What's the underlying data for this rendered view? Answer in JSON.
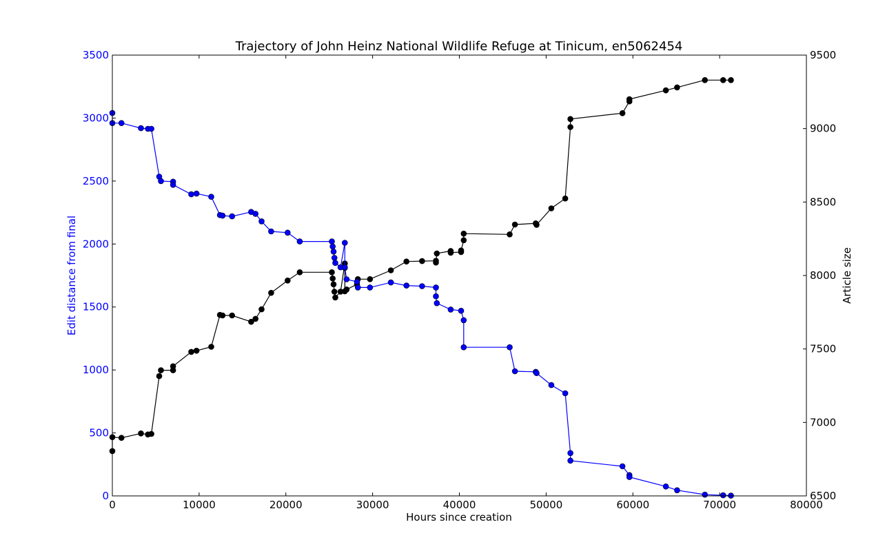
{
  "chart_data": {
    "type": "line",
    "title": "Trajectory of John Heinz National Wildlife Refuge at Tinicum, en5062454",
    "xlabel": "Hours since creation",
    "ylabel_left": "Edit distance from final",
    "ylabel_right": "Article size",
    "xlim": [
      0,
      80000
    ],
    "ylim_left": [
      0,
      3500
    ],
    "ylim_right": [
      6500,
      9500
    ],
    "xticks": [
      "0",
      "10000",
      "20000",
      "30000",
      "40000",
      "50000",
      "60000",
      "70000",
      "80000"
    ],
    "yticks_left": [
      "0",
      "500",
      "1000",
      "1500",
      "2000",
      "2500",
      "3000",
      "3500"
    ],
    "yticks_right": [
      "6500",
      "7000",
      "7500",
      "8000",
      "8500",
      "9000",
      "9500"
    ],
    "grid": false,
    "colors": {
      "left_axis": "#0000ff",
      "edit_series": "#0000ff",
      "size_series": "#000000"
    },
    "series": [
      {
        "axis": "left",
        "color": "#0000ff",
        "points": [
          [
            0,
            3040
          ],
          [
            0,
            2960
          ],
          [
            1050,
            2960
          ],
          [
            3300,
            2920
          ],
          [
            4100,
            2915
          ],
          [
            4500,
            2915
          ],
          [
            5400,
            2535
          ],
          [
            5600,
            2500
          ],
          [
            7000,
            2495
          ],
          [
            7000,
            2470
          ],
          [
            9100,
            2395
          ],
          [
            9700,
            2400
          ],
          [
            11400,
            2375
          ],
          [
            12400,
            2230
          ],
          [
            12700,
            2225
          ],
          [
            13800,
            2220
          ],
          [
            16000,
            2255
          ],
          [
            16500,
            2240
          ],
          [
            17200,
            2180
          ],
          [
            18300,
            2100
          ],
          [
            20200,
            2090
          ],
          [
            21600,
            2020
          ],
          [
            25300,
            2020
          ],
          [
            25400,
            1980
          ],
          [
            25500,
            1940
          ],
          [
            25600,
            1890
          ],
          [
            25700,
            1850
          ],
          [
            26300,
            1815
          ],
          [
            26800,
            2010
          ],
          [
            26800,
            1815
          ],
          [
            27000,
            1720
          ],
          [
            28200,
            1700
          ],
          [
            28300,
            1655
          ],
          [
            29700,
            1655
          ],
          [
            32100,
            1695
          ],
          [
            33900,
            1670
          ],
          [
            35700,
            1665
          ],
          [
            37300,
            1655
          ],
          [
            37300,
            1585
          ],
          [
            37400,
            1530
          ],
          [
            39000,
            1480
          ],
          [
            40200,
            1470
          ],
          [
            40500,
            1395
          ],
          [
            40500,
            1180
          ],
          [
            45800,
            1180
          ],
          [
            46400,
            990
          ],
          [
            48800,
            985
          ],
          [
            48900,
            975
          ],
          [
            50600,
            880
          ],
          [
            52200,
            815
          ],
          [
            52800,
            340
          ],
          [
            52800,
            280
          ],
          [
            58800,
            235
          ],
          [
            59600,
            165
          ],
          [
            59600,
            150
          ],
          [
            63800,
            75
          ],
          [
            65100,
            45
          ],
          [
            68300,
            10
          ],
          [
            70400,
            5
          ],
          [
            71300,
            2
          ]
        ]
      },
      {
        "axis": "right",
        "color": "#000000",
        "points": [
          [
            0,
            6805
          ],
          [
            0,
            6900
          ],
          [
            1050,
            6895
          ],
          [
            3300,
            6925
          ],
          [
            4100,
            6918
          ],
          [
            4500,
            6922
          ],
          [
            5400,
            7315
          ],
          [
            5600,
            7355
          ],
          [
            7000,
            7355
          ],
          [
            7000,
            7382
          ],
          [
            9100,
            7480
          ],
          [
            9700,
            7488
          ],
          [
            11400,
            7515
          ],
          [
            12400,
            7732
          ],
          [
            12700,
            7728
          ],
          [
            13800,
            7728
          ],
          [
            16000,
            7685
          ],
          [
            16500,
            7705
          ],
          [
            17200,
            7770
          ],
          [
            18300,
            7882
          ],
          [
            20200,
            7966
          ],
          [
            21600,
            8022
          ],
          [
            25300,
            8022
          ],
          [
            25400,
            7980
          ],
          [
            25500,
            7940
          ],
          [
            25600,
            7890
          ],
          [
            25700,
            7850
          ],
          [
            26300,
            7890
          ],
          [
            26800,
            8082
          ],
          [
            26800,
            8052
          ],
          [
            26800,
            7892
          ],
          [
            27000,
            7905
          ],
          [
            28200,
            7940
          ],
          [
            28300,
            7975
          ],
          [
            29700,
            7975
          ],
          [
            32100,
            8035
          ],
          [
            33900,
            8095
          ],
          [
            35700,
            8098
          ],
          [
            37300,
            8100
          ],
          [
            37300,
            8088
          ],
          [
            37400,
            8150
          ],
          [
            39000,
            8167
          ],
          [
            39000,
            8155
          ],
          [
            40200,
            8160
          ],
          [
            40200,
            8170
          ],
          [
            40500,
            8240
          ],
          [
            40500,
            8285
          ],
          [
            45800,
            8280
          ],
          [
            46400,
            8347
          ],
          [
            48800,
            8355
          ],
          [
            48900,
            8345
          ],
          [
            50600,
            8457
          ],
          [
            52200,
            8524
          ],
          [
            52800,
            9010
          ],
          [
            52800,
            9065
          ],
          [
            58800,
            9105
          ],
          [
            59600,
            9185
          ],
          [
            59600,
            9200
          ],
          [
            63800,
            9260
          ],
          [
            65100,
            9280
          ],
          [
            68300,
            9330
          ],
          [
            70400,
            9330
          ],
          [
            71300,
            9330
          ]
        ]
      }
    ]
  }
}
